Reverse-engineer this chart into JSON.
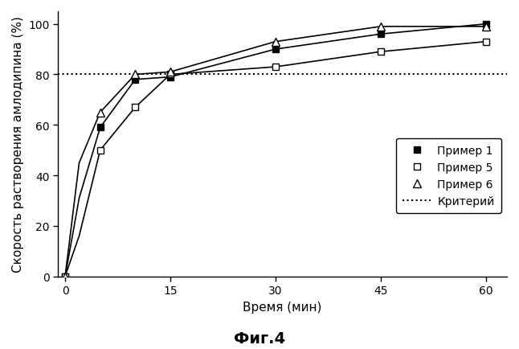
{
  "x_ticks": [
    0,
    15,
    30,
    45,
    60
  ],
  "primer1": {
    "x": [
      0,
      5,
      10,
      15,
      30,
      45,
      60
    ],
    "y": [
      0,
      59,
      78,
      79,
      90,
      96,
      100
    ]
  },
  "primer5": {
    "x": [
      0,
      5,
      10,
      15,
      30,
      45,
      60
    ],
    "y": [
      0,
      50,
      67,
      80,
      83,
      89,
      93
    ]
  },
  "primer6": {
    "x": [
      0,
      5,
      10,
      15,
      30,
      45,
      60
    ],
    "y": [
      0,
      65,
      80,
      81,
      93,
      99,
      99
    ]
  },
  "primer1_curve": {
    "x": [
      0,
      2,
      5,
      10,
      15,
      30,
      45,
      60
    ],
    "y": [
      0,
      31,
      59,
      78,
      79,
      90,
      96,
      100
    ]
  },
  "primer5_curve": {
    "x": [
      0,
      2,
      5,
      10,
      15,
      30,
      45,
      60
    ],
    "y": [
      0,
      16,
      50,
      67,
      80,
      83,
      89,
      93
    ]
  },
  "primer6_curve": {
    "x": [
      0,
      2,
      5,
      10,
      15,
      30,
      45,
      60
    ],
    "y": [
      0,
      45,
      65,
      80,
      81,
      93,
      99,
      99
    ]
  },
  "criterion_y": 80,
  "xlabel": "Время (мин)",
  "ylabel": "Скорость растворения амлодипина (%)",
  "legend_labels": [
    "Пример 1",
    "Пример 5",
    "Пример 6",
    "Критерий"
  ],
  "caption": "Фиг.4",
  "ylim": [
    0,
    105
  ],
  "xlim": [
    -1,
    63
  ],
  "yticks": [
    0,
    20,
    40,
    60,
    80,
    100
  ],
  "line_color": "#000000",
  "background_color": "#ffffff",
  "axis_fontsize": 11,
  "legend_fontsize": 10,
  "caption_fontsize": 14
}
